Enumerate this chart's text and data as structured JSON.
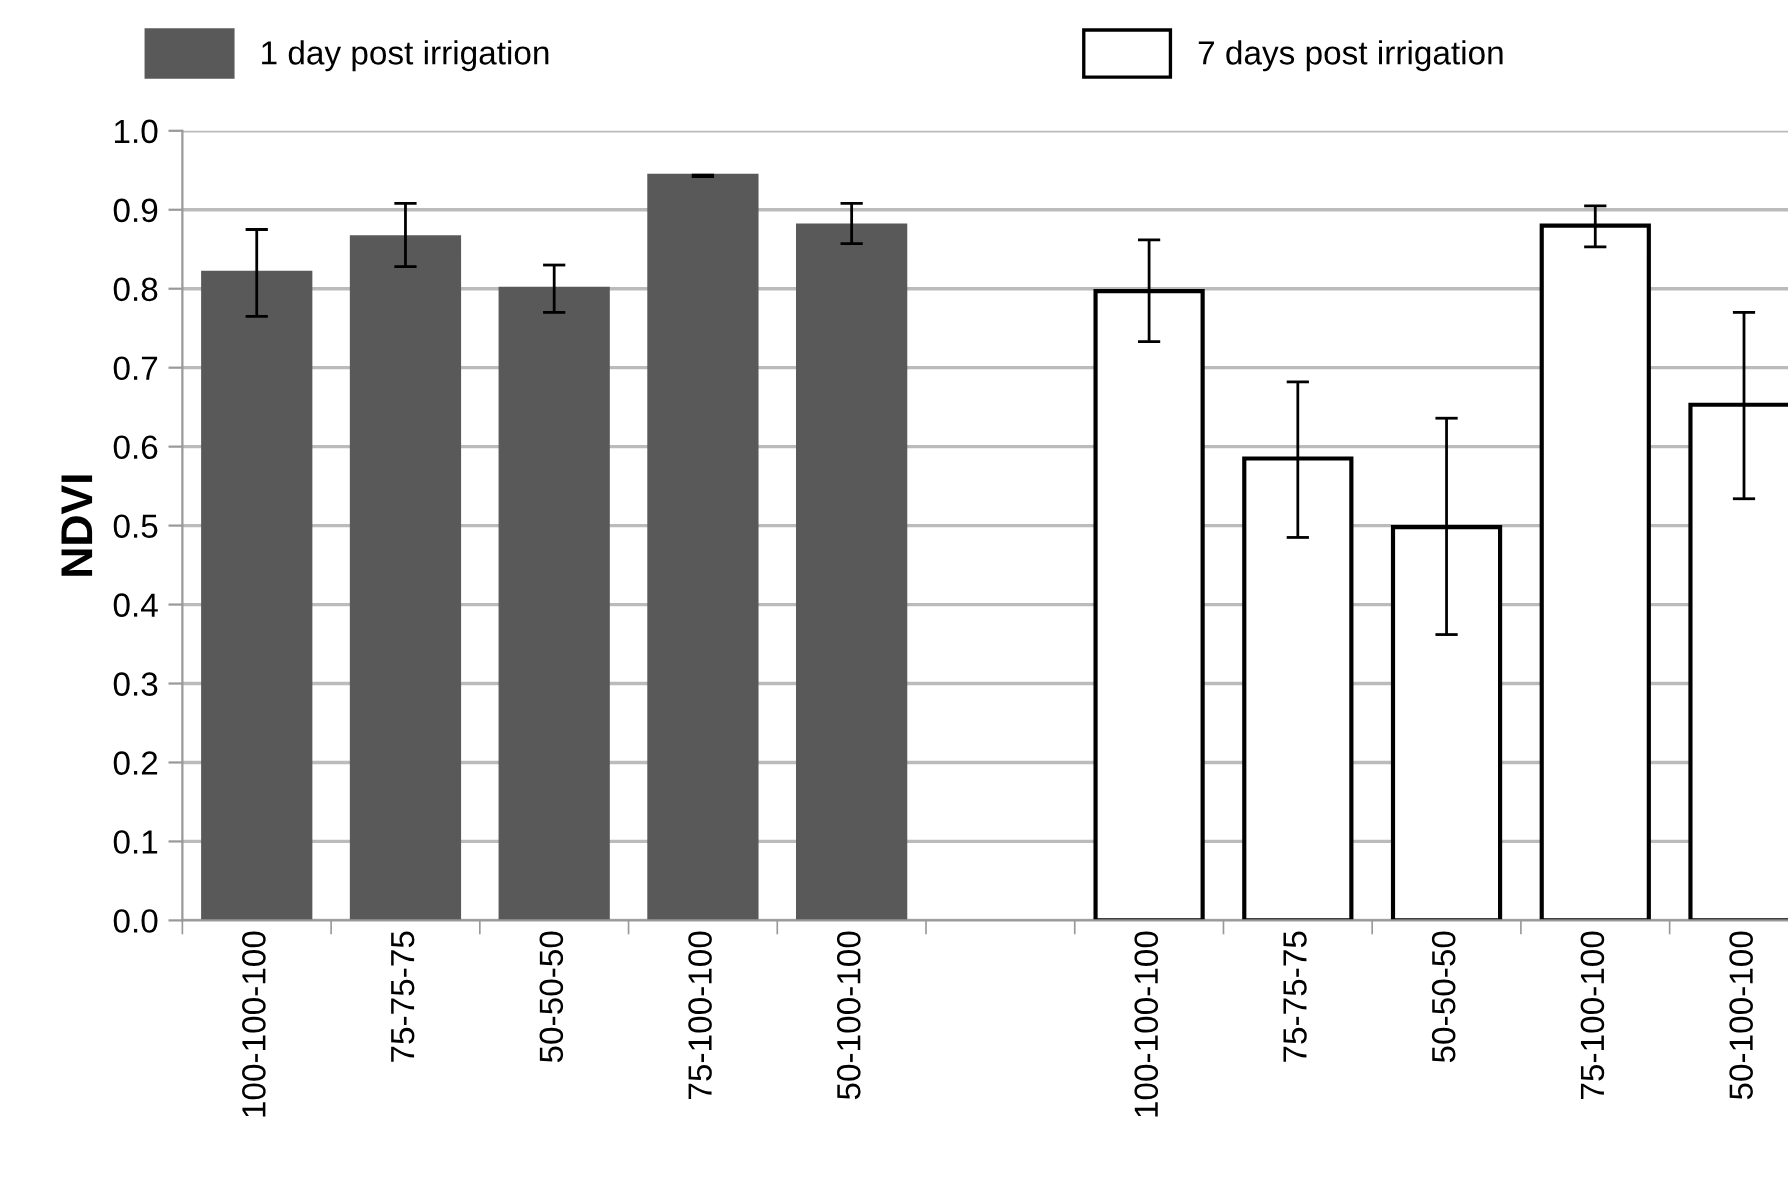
{
  "chart_data": {
    "type": "bar",
    "ylabel": "NDVI",
    "categories": [
      "100-100-100",
      "75-75-75",
      "50-50-50",
      "75-100-100",
      "50-100-100",
      null,
      "100-100-100",
      "75-75-75",
      "50-50-50",
      "75-100-100",
      "50-100-100"
    ],
    "series": [
      {
        "name": "1 day post irrigation",
        "color": "#595959",
        "values": [
          0.82,
          0.865,
          0.8,
          0.943,
          0.88,
          null,
          null,
          null,
          null,
          null,
          null
        ],
        "errors": [
          [
            0.765,
            0.875
          ],
          [
            0.828,
            0.908
          ],
          [
            0.77,
            0.83
          ],
          [
            0.942,
            0.944
          ],
          [
            0.857,
            0.908
          ],
          null,
          null,
          null,
          null,
          null,
          null
        ]
      },
      {
        "name": "7 days post irrigation",
        "color": "#ffffff",
        "values": [
          null,
          null,
          null,
          null,
          null,
          null,
          0.797,
          0.585,
          0.498,
          0.88,
          0.653
        ],
        "errors": [
          null,
          null,
          null,
          null,
          null,
          null,
          [
            0.733,
            0.862
          ],
          [
            0.485,
            0.682
          ],
          [
            0.362,
            0.636
          ],
          [
            0.853,
            0.905
          ],
          [
            0.534,
            0.77
          ]
        ]
      }
    ],
    "ylim": [
      0,
      1.0
    ],
    "yticks": [
      {
        "value": 0,
        "label": "0.0"
      },
      0.1,
      0.2,
      0.3,
      0.4,
      0.5,
      0.6,
      0.7,
      0.8,
      0.9,
      {
        "value": 1.0,
        "label": "1.0"
      }
    ],
    "grid": "y",
    "legend": "top"
  }
}
